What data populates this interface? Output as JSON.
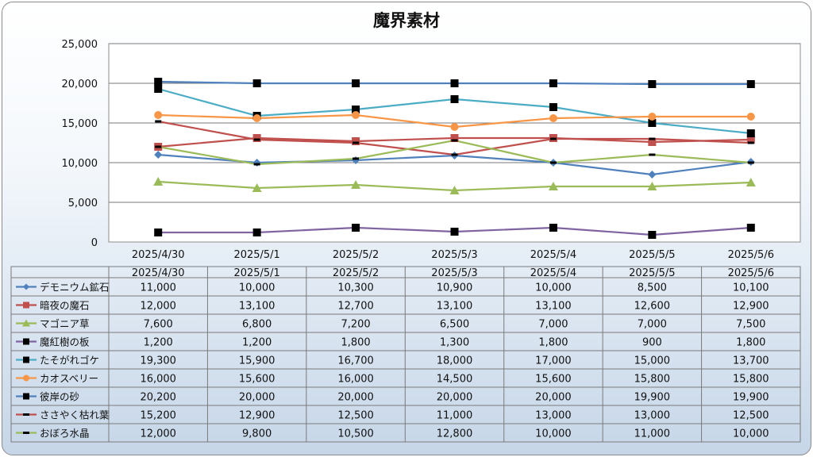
{
  "chart_data": {
    "type": "line",
    "title": "魔界素材",
    "categories": [
      "2025/4/30",
      "2025/5/1",
      "2025/5/2",
      "2025/5/3",
      "2025/5/4",
      "2025/5/5",
      "2025/5/6"
    ],
    "ylim": [
      0,
      25000
    ],
    "yticks": [
      0,
      5000,
      10000,
      15000,
      20000,
      25000
    ],
    "ytick_labels": [
      "0",
      "5,000",
      "10,000",
      "15,000",
      "20,000",
      "25,000"
    ],
    "grid": true,
    "legend_placement": "data-table",
    "series": [
      {
        "name": "デモニウム鉱石",
        "color": "#4f81bd",
        "marker": "diamond",
        "values": [
          11000,
          10000,
          10300,
          10900,
          10000,
          8500,
          10100
        ],
        "labels": [
          "11,000",
          "10,000",
          "10,300",
          "10,900",
          "10,000",
          "8,500",
          "10,100"
        ]
      },
      {
        "name": "暗夜の魔石",
        "color": "#c0504d",
        "marker": "square",
        "values": [
          12000,
          13100,
          12700,
          13100,
          13100,
          12600,
          12900
        ],
        "labels": [
          "12,000",
          "13,100",
          "12,700",
          "13,100",
          "13,100",
          "12,600",
          "12,900"
        ]
      },
      {
        "name": "マゴニア草",
        "color": "#9bbb59",
        "marker": "triangle",
        "values": [
          7600,
          6800,
          7200,
          6500,
          7000,
          7000,
          7500
        ],
        "labels": [
          "7,600",
          "6,800",
          "7,200",
          "6,500",
          "7,000",
          "7,000",
          "7,500"
        ]
      },
      {
        "name": "魔紅樹の板",
        "color": "#8064a2",
        "marker": "square-black",
        "values": [
          1200,
          1200,
          1800,
          1300,
          1800,
          900,
          1800
        ],
        "labels": [
          "1,200",
          "1,200",
          "1,800",
          "1,300",
          "1,800",
          "900",
          "1,800"
        ]
      },
      {
        "name": "たそがれゴケ",
        "color": "#4bacc6",
        "marker": "square-black",
        "values": [
          19300,
          15900,
          16700,
          18000,
          17000,
          15000,
          13700
        ],
        "labels": [
          "19,300",
          "15,900",
          "16,700",
          "18,000",
          "17,000",
          "15,000",
          "13,700"
        ]
      },
      {
        "name": "カオスベリー",
        "color": "#f79646",
        "marker": "circle",
        "values": [
          16000,
          15600,
          16000,
          14500,
          15600,
          15800,
          15800
        ],
        "labels": [
          "16,000",
          "15,600",
          "16,000",
          "14,500",
          "15,600",
          "15,800",
          "15,800"
        ]
      },
      {
        "name": "彼岸の砂",
        "color": "#4f81bd",
        "marker": "square-black",
        "values": [
          20200,
          20000,
          20000,
          20000,
          20000,
          19900,
          19900
        ],
        "labels": [
          "20,200",
          "20,000",
          "20,000",
          "20,000",
          "20,000",
          "19,900",
          "19,900"
        ]
      },
      {
        "name": "ささやく枯れ葉",
        "color": "#c0504d",
        "marker": "dash",
        "values": [
          15200,
          12900,
          12500,
          11000,
          13000,
          13000,
          12500
        ],
        "labels": [
          "15,200",
          "12,900",
          "12,500",
          "11,000",
          "13,000",
          "13,000",
          "12,500"
        ]
      },
      {
        "name": "おぼろ水晶",
        "color": "#9bbb59",
        "marker": "dash",
        "values": [
          12000,
          9800,
          10500,
          12800,
          10000,
          11000,
          10000
        ],
        "labels": [
          "12,000",
          "9,800",
          "10,500",
          "12,800",
          "10,000",
          "11,000",
          "10,000"
        ]
      }
    ]
  }
}
